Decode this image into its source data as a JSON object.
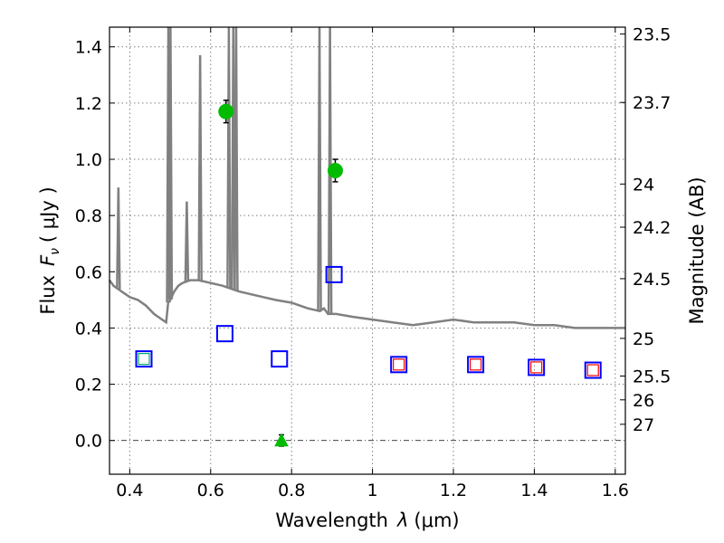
{
  "chart_data": {
    "type": "scatter",
    "xlabel_text": "Wavelength",
    "xlabel_sym": "λ",
    "xlabel_unit": "(μm)",
    "ylabel_text": "Flux",
    "ylabel_sym": "F",
    "ylabel_sub": "ν",
    "ylabel_unit": "( μJy )",
    "y2label": "Magnitude (AB)",
    "xlim": [
      0.35,
      1.625
    ],
    "ylim": [
      -0.12,
      1.47
    ],
    "x_ticks": [
      0.4,
      0.6,
      0.8,
      1.0,
      1.2,
      1.4,
      1.6
    ],
    "x_tick_labels": [
      "0.4",
      "0.6",
      "0.8",
      "1",
      "1.2",
      "1.4",
      "1.6"
    ],
    "y_ticks": [
      0.0,
      0.2,
      0.4,
      0.6,
      0.8,
      1.0,
      1.2,
      1.4
    ],
    "y_tick_labels": [
      "0.0",
      "0.2",
      "0.4",
      "0.6",
      "0.8",
      "1.0",
      "1.2",
      "1.4"
    ],
    "mag_ticks": [
      23.5,
      23.7,
      24,
      24.2,
      24.5,
      25,
      25.5,
      26,
      27
    ],
    "mag_tick_labels": [
      "23.5",
      "23.7",
      "24",
      "24.2",
      "24.5",
      "25",
      "25.5",
      "26",
      "27"
    ],
    "grid": true,
    "series": [
      {
        "marker": "line",
        "color": "#808080",
        "x": [
          0.35,
          0.36,
          0.37,
          0.38,
          0.39,
          0.4,
          0.42,
          0.44,
          0.46,
          0.48,
          0.49,
          0.495,
          0.5,
          0.51,
          0.52,
          0.53,
          0.55,
          0.57,
          0.6,
          0.63,
          0.65,
          0.67,
          0.7,
          0.73,
          0.76,
          0.8,
          0.84,
          0.87,
          0.88,
          0.89,
          0.91,
          0.95,
          1.0,
          1.05,
          1.1,
          1.15,
          1.2,
          1.25,
          1.3,
          1.35,
          1.4,
          1.45,
          1.5,
          1.55,
          1.6,
          1.625
        ],
        "y": [
          0.57,
          0.55,
          0.54,
          0.53,
          0.52,
          0.51,
          0.5,
          0.48,
          0.45,
          0.43,
          0.42,
          0.49,
          0.5,
          0.53,
          0.55,
          0.56,
          0.57,
          0.57,
          0.56,
          0.55,
          0.54,
          0.53,
          0.52,
          0.51,
          0.5,
          0.49,
          0.47,
          0.46,
          0.47,
          0.45,
          0.45,
          0.44,
          0.43,
          0.42,
          0.41,
          0.42,
          0.43,
          0.42,
          0.42,
          0.42,
          0.41,
          0.41,
          0.4,
          0.4,
          0.4,
          0.4
        ]
      },
      {
        "marker": "circle",
        "color": "#00bb00",
        "points": [
          {
            "x": 0.638,
            "y": 1.17,
            "err": 0.04
          },
          {
            "x": 0.908,
            "y": 0.96,
            "err": 0.04
          }
        ]
      },
      {
        "marker": "triangle",
        "color": "#00bb00",
        "points": [
          {
            "x": 0.775,
            "y": 0.0,
            "err": 0.02
          }
        ]
      },
      {
        "marker": "square",
        "color": "#0000ff",
        "points": [
          {
            "x": 0.435,
            "y": 0.29
          },
          {
            "x": 0.635,
            "y": 0.38
          },
          {
            "x": 0.77,
            "y": 0.29
          },
          {
            "x": 0.905,
            "y": 0.59
          },
          {
            "x": 1.065,
            "y": 0.27
          },
          {
            "x": 1.255,
            "y": 0.27
          },
          {
            "x": 1.405,
            "y": 0.26
          },
          {
            "x": 1.545,
            "y": 0.25
          }
        ]
      },
      {
        "marker": "square",
        "color": "#ff0000",
        "points": [
          {
            "x": 1.065,
            "y": 0.27
          },
          {
            "x": 1.255,
            "y": 0.27
          },
          {
            "x": 1.405,
            "y": 0.26
          },
          {
            "x": 1.545,
            "y": 0.25
          }
        ]
      },
      {
        "marker": "square",
        "color": "#00aa66",
        "points": [
          {
            "x": 0.435,
            "y": 0.29
          }
        ]
      }
    ],
    "emission_lines": [
      {
        "x": 0.372,
        "peak": 0.9
      },
      {
        "x": 0.4955,
        "peak": 1.47
      },
      {
        "x": 0.5007,
        "peak": 1.47
      },
      {
        "x": 0.541,
        "peak": 0.85
      },
      {
        "x": 0.574,
        "peak": 1.37
      },
      {
        "x": 0.645,
        "peak": 1.47
      },
      {
        "x": 0.656,
        "peak": 1.47
      },
      {
        "x": 0.663,
        "peak": 1.47
      },
      {
        "x": 0.869,
        "peak": 1.47
      },
      {
        "x": 0.895,
        "peak": 1.47
      }
    ]
  }
}
